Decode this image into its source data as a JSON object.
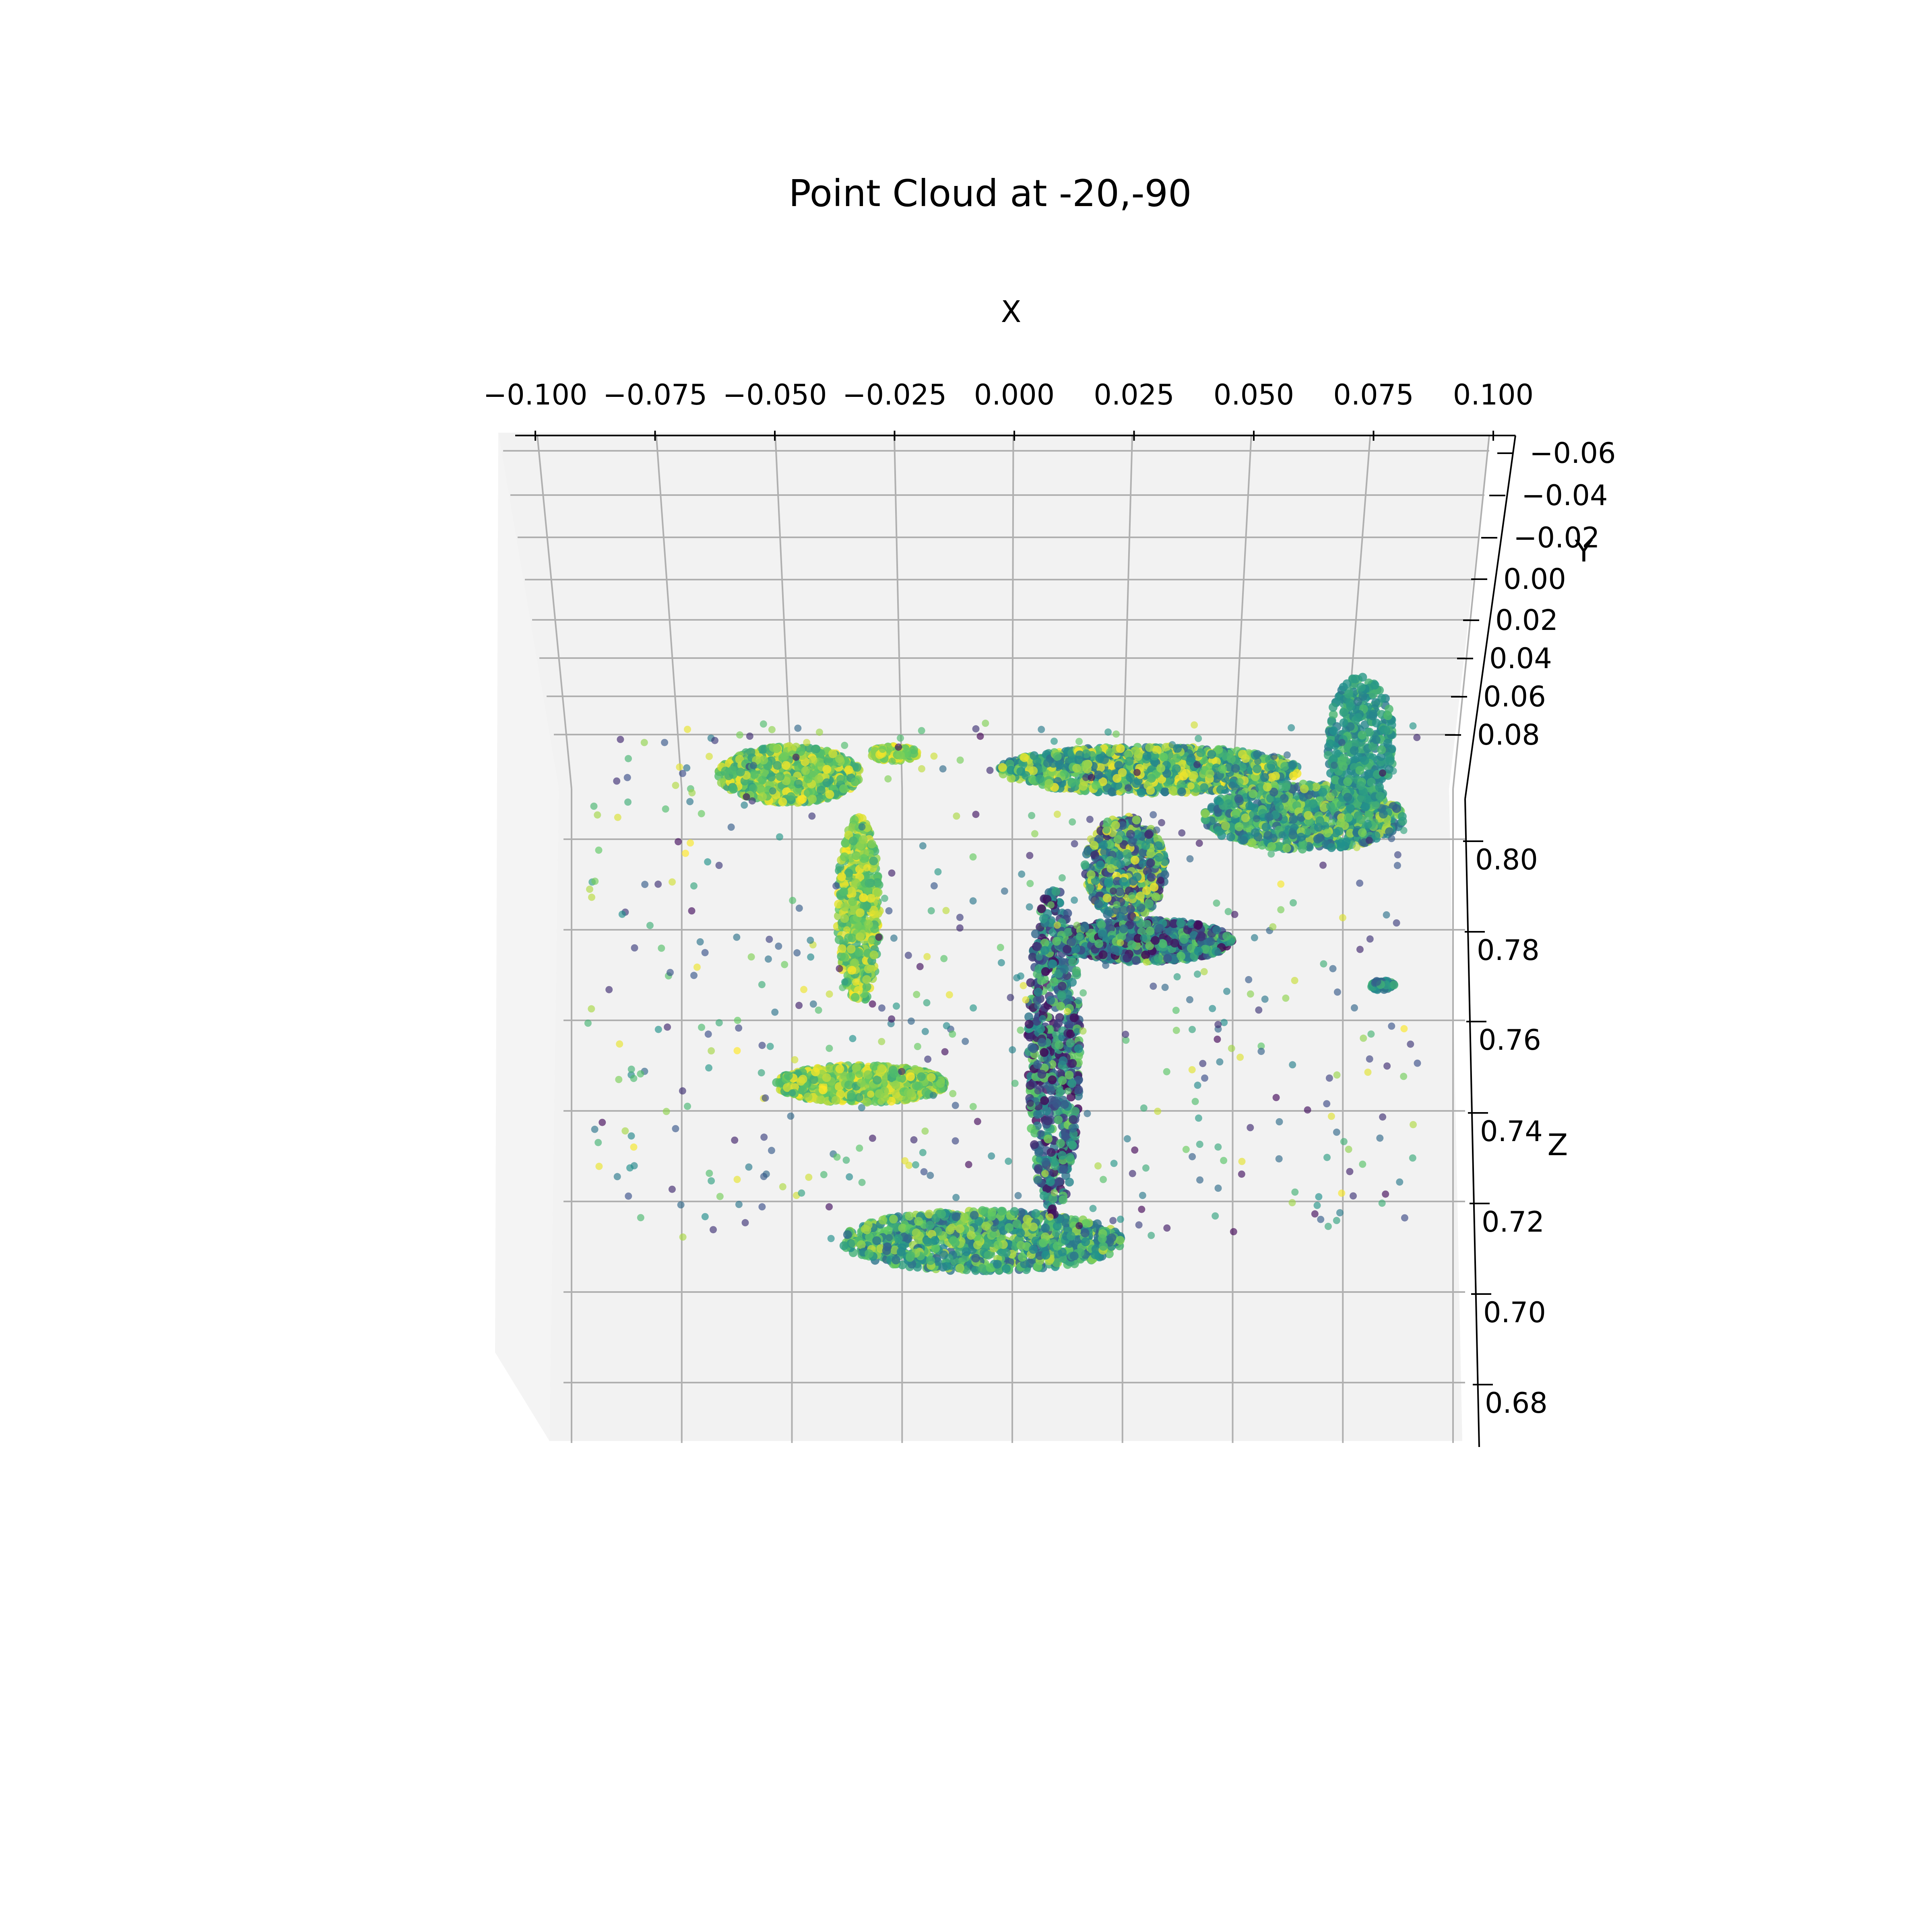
{
  "chart_data": {
    "type": "scatter",
    "title": "Point Cloud at  -20,-90",
    "xlabel": "X",
    "ylabel": "Y",
    "zlabel": "Z",
    "view": {
      "elevation": -20,
      "azimuth": -90
    },
    "xlim": [
      -0.1,
      0.1
    ],
    "ylim": [
      -0.06,
      0.09
    ],
    "zlim": [
      0.675,
      0.815
    ],
    "x_ticks": [
      "−0.100",
      "−0.075",
      "−0.050",
      "−0.025",
      "0.000",
      "0.025",
      "0.050",
      "0.075",
      "0.100"
    ],
    "y_ticks": [
      "−0.06",
      "−0.04",
      "−0.02",
      "0.00",
      "0.02",
      "0.04",
      "0.06",
      "0.08"
    ],
    "z_ticks": [
      "0.80",
      "0.78",
      "0.76",
      "0.74",
      "0.72",
      "0.70",
      "0.68"
    ],
    "colormap": "viridis",
    "colors": {
      "pane": "#f2f2f2",
      "grid": "#b0b0b0",
      "axis": "#000000",
      "cmap": [
        "#440154",
        "#3b528b",
        "#21918c",
        "#5ec962",
        "#fde725"
      ]
    },
    "grid": true,
    "clusters": [
      {
        "name": "upper-left-leaf",
        "x": [
          -0.062,
          -0.032
        ],
        "z": [
          0.788,
          0.8
        ],
        "count": 900,
        "c": [
          0.55,
          1.0
        ]
      },
      {
        "name": "upper-left-small",
        "x": [
          -0.03,
          -0.02
        ],
        "z": [
          0.797,
          0.8
        ],
        "count": 120,
        "c": [
          0.7,
          1.0
        ]
      },
      {
        "name": "left-stem",
        "x": [
          -0.037,
          -0.028
        ],
        "z": [
          0.745,
          0.785
        ],
        "count": 500,
        "c": [
          0.6,
          1.0
        ]
      },
      {
        "name": "lower-left-leaf",
        "x": [
          -0.05,
          -0.014
        ],
        "z": [
          0.724,
          0.732
        ],
        "count": 900,
        "c": [
          0.6,
          1.0
        ]
      },
      {
        "name": "bottom-leaf",
        "x": [
          -0.036,
          0.023
        ],
        "z": [
          0.688,
          0.701
        ],
        "count": 1100,
        "c": [
          0.3,
          0.9
        ]
      },
      {
        "name": "center-stem",
        "x": [
          0.003,
          0.014
        ],
        "z": [
          0.7,
          0.77
        ],
        "count": 700,
        "c": [
          0.0,
          0.8
        ]
      },
      {
        "name": "center-right-leaf",
        "x": [
          -0.003,
          0.06
        ],
        "z": [
          0.79,
          0.8
        ],
        "count": 1300,
        "c": [
          0.35,
          1.0
        ]
      },
      {
        "name": "right-leaf",
        "x": [
          0.04,
          0.082
        ],
        "z": [
          0.778,
          0.792
        ],
        "count": 900,
        "c": [
          0.3,
          0.9
        ]
      },
      {
        "name": "right-stalk",
        "x": [
          0.066,
          0.08
        ],
        "z": [
          0.786,
          0.815
        ],
        "count": 400,
        "c": [
          0.4,
          0.7
        ]
      },
      {
        "name": "middle-leaf",
        "x": [
          0.009,
          0.046
        ],
        "z": [
          0.754,
          0.763
        ],
        "count": 900,
        "c": [
          0.0,
          0.8
        ]
      },
      {
        "name": "middle-stem",
        "x": [
          0.015,
          0.032
        ],
        "z": [
          0.763,
          0.785
        ],
        "count": 600,
        "c": [
          0.1,
          1.0
        ]
      },
      {
        "name": "small-right-blob",
        "x": [
          0.075,
          0.08
        ],
        "z": [
          0.748,
          0.75
        ],
        "count": 60,
        "c": [
          0.3,
          0.7
        ]
      },
      {
        "name": "scattered-noise",
        "x": [
          -0.09,
          0.085
        ],
        "z": [
          0.695,
          0.805
        ],
        "count": 500,
        "c": [
          0.0,
          1.0
        ]
      }
    ]
  }
}
